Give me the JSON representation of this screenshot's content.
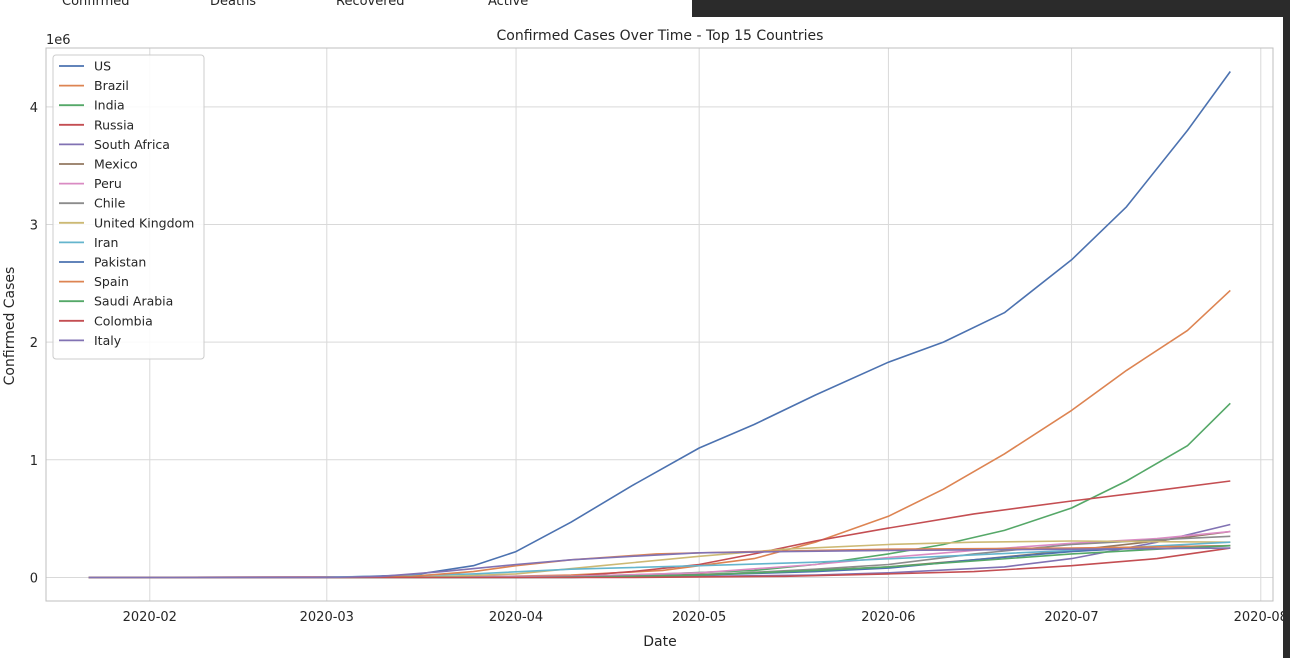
{
  "header": {
    "columns": [
      "Confirmed",
      "Deaths",
      "Recovered",
      "Active"
    ]
  },
  "chart_data": {
    "type": "line",
    "title": "Confirmed Cases Over Time - Top 15 Countries",
    "xlabel": "Date",
    "ylabel": "Confirmed Cases",
    "y_offset_label": "1e6",
    "xlim": [
      "2020-01-15",
      "2020-08-03"
    ],
    "ylim": [
      -0.2,
      4.5
    ],
    "x_ticks": [
      "2020-02",
      "2020-03",
      "2020-04",
      "2020-05",
      "2020-06",
      "2020-07",
      "2020-08"
    ],
    "y_ticks": [
      "0",
      "1",
      "2",
      "3",
      "4"
    ],
    "y_unit": "millions (1e6)",
    "grid": true,
    "legend_position": "top-left",
    "series": [
      {
        "name": "US",
        "color": "#4c72b0",
        "points": [
          [
            "2020-01-22",
            0
          ],
          [
            "2020-03-01",
            0.0
          ],
          [
            "2020-03-15",
            0.02
          ],
          [
            "2020-03-25",
            0.1
          ],
          [
            "2020-04-01",
            0.22
          ],
          [
            "2020-04-10",
            0.47
          ],
          [
            "2020-04-20",
            0.78
          ],
          [
            "2020-05-01",
            1.1
          ],
          [
            "2020-05-10",
            1.3
          ],
          [
            "2020-05-20",
            1.55
          ],
          [
            "2020-06-01",
            1.83
          ],
          [
            "2020-06-10",
            2.0
          ],
          [
            "2020-06-20",
            2.25
          ],
          [
            "2020-07-01",
            2.7
          ],
          [
            "2020-07-10",
            3.15
          ],
          [
            "2020-07-20",
            3.8
          ],
          [
            "2020-07-27",
            4.3
          ]
        ]
      },
      {
        "name": "Brazil",
        "color": "#dd8452",
        "points": [
          [
            "2020-01-22",
            0
          ],
          [
            "2020-03-20",
            0.0
          ],
          [
            "2020-04-10",
            0.02
          ],
          [
            "2020-04-25",
            0.06
          ],
          [
            "2020-05-10",
            0.16
          ],
          [
            "2020-05-20",
            0.3
          ],
          [
            "2020-06-01",
            0.52
          ],
          [
            "2020-06-10",
            0.75
          ],
          [
            "2020-06-20",
            1.05
          ],
          [
            "2020-07-01",
            1.42
          ],
          [
            "2020-07-10",
            1.76
          ],
          [
            "2020-07-20",
            2.1
          ],
          [
            "2020-07-27",
            2.44
          ]
        ]
      },
      {
        "name": "India",
        "color": "#55a868",
        "points": [
          [
            "2020-01-22",
            0
          ],
          [
            "2020-04-01",
            0.0
          ],
          [
            "2020-04-20",
            0.02
          ],
          [
            "2020-05-10",
            0.06
          ],
          [
            "2020-05-20",
            0.11
          ],
          [
            "2020-06-01",
            0.2
          ],
          [
            "2020-06-10",
            0.28
          ],
          [
            "2020-06-20",
            0.4
          ],
          [
            "2020-07-01",
            0.59
          ],
          [
            "2020-07-10",
            0.82
          ],
          [
            "2020-07-20",
            1.12
          ],
          [
            "2020-07-27",
            1.48
          ]
        ]
      },
      {
        "name": "Russia",
        "color": "#c44e52",
        "points": [
          [
            "2020-01-22",
            0
          ],
          [
            "2020-03-25",
            0.0
          ],
          [
            "2020-04-10",
            0.01
          ],
          [
            "2020-04-20",
            0.05
          ],
          [
            "2020-05-01",
            0.11
          ],
          [
            "2020-05-10",
            0.2
          ],
          [
            "2020-05-20",
            0.31
          ],
          [
            "2020-06-01",
            0.42
          ],
          [
            "2020-06-15",
            0.54
          ],
          [
            "2020-07-01",
            0.65
          ],
          [
            "2020-07-15",
            0.74
          ],
          [
            "2020-07-27",
            0.82
          ]
        ]
      },
      {
        "name": "South Africa",
        "color": "#8172b3",
        "points": [
          [
            "2020-01-22",
            0
          ],
          [
            "2020-05-01",
            0.01
          ],
          [
            "2020-05-20",
            0.02
          ],
          [
            "2020-06-01",
            0.04
          ],
          [
            "2020-06-20",
            0.09
          ],
          [
            "2020-07-01",
            0.16
          ],
          [
            "2020-07-15",
            0.3
          ],
          [
            "2020-07-27",
            0.45
          ]
        ]
      },
      {
        "name": "Mexico",
        "color": "#937860",
        "points": [
          [
            "2020-01-22",
            0
          ],
          [
            "2020-04-20",
            0.01
          ],
          [
            "2020-05-10",
            0.04
          ],
          [
            "2020-06-01",
            0.09
          ],
          [
            "2020-06-15",
            0.15
          ],
          [
            "2020-07-01",
            0.23
          ],
          [
            "2020-07-15",
            0.31
          ],
          [
            "2020-07-27",
            0.39
          ]
        ]
      },
      {
        "name": "Peru",
        "color": "#da8bc3",
        "points": [
          [
            "2020-01-22",
            0
          ],
          [
            "2020-04-10",
            0.01
          ],
          [
            "2020-05-01",
            0.04
          ],
          [
            "2020-05-20",
            0.11
          ],
          [
            "2020-06-01",
            0.17
          ],
          [
            "2020-06-15",
            0.23
          ],
          [
            "2020-07-01",
            0.29
          ],
          [
            "2020-07-15",
            0.33
          ],
          [
            "2020-07-27",
            0.39
          ]
        ]
      },
      {
        "name": "Chile",
        "color": "#8c8c8c",
        "points": [
          [
            "2020-01-22",
            0
          ],
          [
            "2020-04-01",
            0.0
          ],
          [
            "2020-05-01",
            0.02
          ],
          [
            "2020-05-20",
            0.07
          ],
          [
            "2020-06-01",
            0.11
          ],
          [
            "2020-06-15",
            0.2
          ],
          [
            "2020-07-01",
            0.28
          ],
          [
            "2020-07-15",
            0.32
          ],
          [
            "2020-07-27",
            0.35
          ]
        ]
      },
      {
        "name": "United Kingdom",
        "color": "#ccb974",
        "points": [
          [
            "2020-01-22",
            0
          ],
          [
            "2020-03-15",
            0.0
          ],
          [
            "2020-04-01",
            0.03
          ],
          [
            "2020-04-15",
            0.1
          ],
          [
            "2020-05-01",
            0.18
          ],
          [
            "2020-05-15",
            0.24
          ],
          [
            "2020-06-01",
            0.28
          ],
          [
            "2020-06-15",
            0.3
          ],
          [
            "2020-07-01",
            0.31
          ],
          [
            "2020-07-27",
            0.3
          ]
        ]
      },
      {
        "name": "Iran",
        "color": "#64b5cd",
        "points": [
          [
            "2020-01-22",
            0
          ],
          [
            "2020-02-25",
            0.0
          ],
          [
            "2020-03-10",
            0.01
          ],
          [
            "2020-03-25",
            0.03
          ],
          [
            "2020-04-10",
            0.07
          ],
          [
            "2020-05-01",
            0.1
          ],
          [
            "2020-05-20",
            0.13
          ],
          [
            "2020-06-10",
            0.18
          ],
          [
            "2020-07-01",
            0.23
          ],
          [
            "2020-07-27",
            0.3
          ]
        ]
      },
      {
        "name": "Pakistan",
        "color": "#4c72b0",
        "points": [
          [
            "2020-01-22",
            0
          ],
          [
            "2020-04-10",
            0.0
          ],
          [
            "2020-05-01",
            0.02
          ],
          [
            "2020-05-20",
            0.05
          ],
          [
            "2020-06-01",
            0.08
          ],
          [
            "2020-06-15",
            0.15
          ],
          [
            "2020-07-01",
            0.22
          ],
          [
            "2020-07-15",
            0.26
          ],
          [
            "2020-07-27",
            0.27
          ]
        ]
      },
      {
        "name": "Spain",
        "color": "#dd8452",
        "points": [
          [
            "2020-01-22",
            0
          ],
          [
            "2020-03-05",
            0.0
          ],
          [
            "2020-03-15",
            0.01
          ],
          [
            "2020-03-25",
            0.05
          ],
          [
            "2020-04-01",
            0.1
          ],
          [
            "2020-04-10",
            0.15
          ],
          [
            "2020-04-24",
            0.2
          ],
          [
            "2020-05-10",
            0.22
          ],
          [
            "2020-06-01",
            0.24
          ],
          [
            "2020-07-01",
            0.25
          ],
          [
            "2020-07-27",
            0.27
          ]
        ]
      },
      {
        "name": "Saudi Arabia",
        "color": "#55a868",
        "points": [
          [
            "2020-01-22",
            0
          ],
          [
            "2020-04-10",
            0.0
          ],
          [
            "2020-05-01",
            0.02
          ],
          [
            "2020-05-20",
            0.06
          ],
          [
            "2020-06-01",
            0.09
          ],
          [
            "2020-06-15",
            0.14
          ],
          [
            "2020-07-01",
            0.2
          ],
          [
            "2020-07-15",
            0.24
          ],
          [
            "2020-07-27",
            0.27
          ]
        ]
      },
      {
        "name": "Colombia",
        "color": "#c44e52",
        "points": [
          [
            "2020-01-22",
            0
          ],
          [
            "2020-04-20",
            0.0
          ],
          [
            "2020-05-15",
            0.01
          ],
          [
            "2020-06-01",
            0.03
          ],
          [
            "2020-06-15",
            0.05
          ],
          [
            "2020-07-01",
            0.1
          ],
          [
            "2020-07-15",
            0.16
          ],
          [
            "2020-07-27",
            0.25
          ]
        ]
      },
      {
        "name": "Italy",
        "color": "#8172b3",
        "points": [
          [
            "2020-01-22",
            0
          ],
          [
            "2020-02-22",
            0.0
          ],
          [
            "2020-03-01",
            0.0
          ],
          [
            "2020-03-10",
            0.01
          ],
          [
            "2020-03-20",
            0.05
          ],
          [
            "2020-04-01",
            0.11
          ],
          [
            "2020-04-10",
            0.15
          ],
          [
            "2020-04-20",
            0.18
          ],
          [
            "2020-05-01",
            0.21
          ],
          [
            "2020-05-15",
            0.22
          ],
          [
            "2020-06-01",
            0.23
          ],
          [
            "2020-07-01",
            0.24
          ],
          [
            "2020-07-27",
            0.25
          ]
        ]
      }
    ]
  }
}
